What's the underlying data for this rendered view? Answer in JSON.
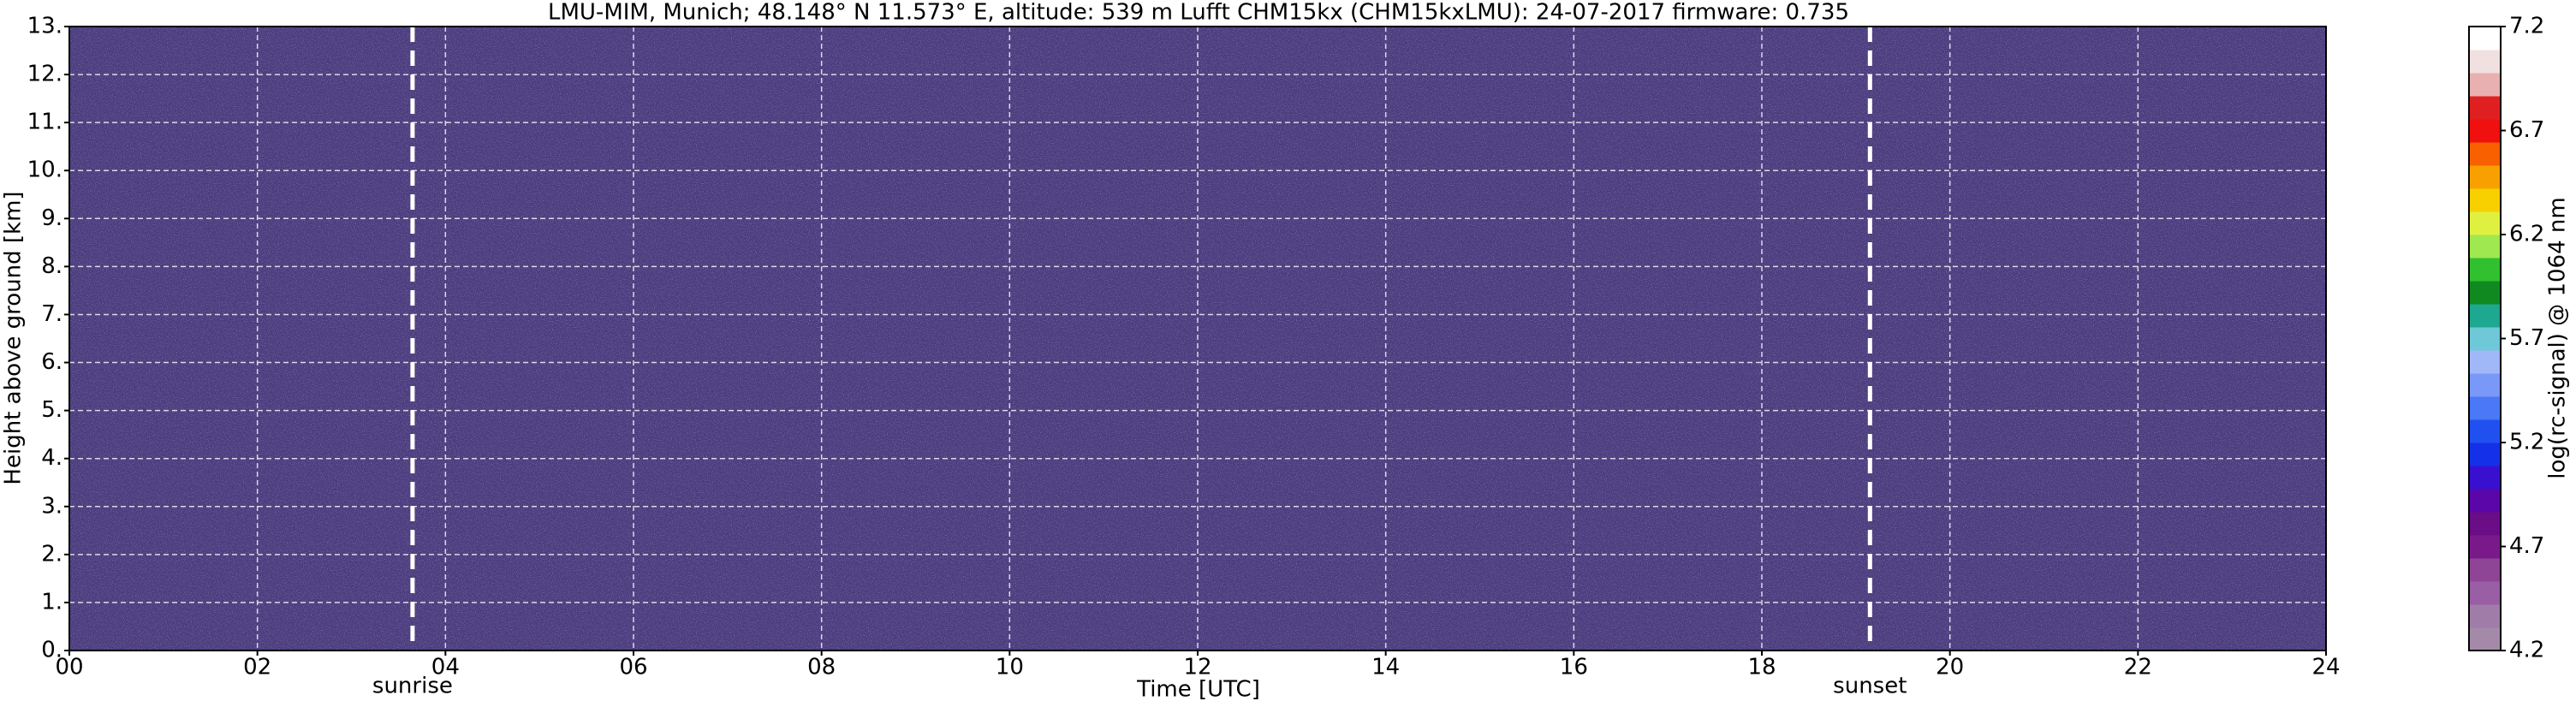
{
  "chart_data": {
    "type": "heatmap",
    "title": "LMU-MIM, Munich; 48.148° N 11.573° E, altitude: 539 m    Lufft CHM15kx (CHM15kxLMU): 24-07-2017    firmware: 0.735",
    "x_label": "Time [UTC]",
    "y_label": "Height above ground [km]",
    "xlim": [
      0,
      24
    ],
    "xticks": [
      {
        "value": 0,
        "label": "00"
      },
      {
        "value": 2,
        "label": "02"
      },
      {
        "value": 4,
        "label": "04"
      },
      {
        "value": 6,
        "label": "06"
      },
      {
        "value": 8,
        "label": "08"
      },
      {
        "value": 10,
        "label": "10"
      },
      {
        "value": 12,
        "label": "12"
      },
      {
        "value": 14,
        "label": "14"
      },
      {
        "value": 16,
        "label": "16"
      },
      {
        "value": 18,
        "label": "18"
      },
      {
        "value": 20,
        "label": "20"
      },
      {
        "value": 22,
        "label": "22"
      },
      24
    ],
    "ylim": [
      0,
      13
    ],
    "yticks": [
      {
        "value": 0,
        "label": "0."
      },
      {
        "value": 1,
        "label": "1."
      },
      {
        "value": 2,
        "label": "2."
      },
      {
        "value": 3,
        "label": "3."
      },
      {
        "value": 4,
        "label": "4."
      },
      {
        "value": 5,
        "label": "5."
      },
      {
        "value": 6,
        "label": "6."
      },
      {
        "value": 7,
        "label": "7."
      },
      {
        "value": 8,
        "label": "8."
      },
      {
        "value": 9,
        "label": "9."
      },
      {
        "value": 10,
        "label": "10."
      },
      {
        "value": 11,
        "label": "11."
      },
      {
        "value": 12,
        "label": "12."
      },
      {
        "value": 13,
        "label": "13."
      }
    ],
    "grid": true,
    "annotations": [
      {
        "label": "sunrise",
        "x": 3.65
      },
      {
        "label": "sunset",
        "x": 19.15
      }
    ],
    "colorbar": {
      "label": "log(rc-signal) @ 1064 nm",
      "lim": [
        4.2,
        7.2
      ],
      "ticks": [
        4.2,
        4.7,
        5.2,
        5.7,
        6.2,
        6.7,
        7.2
      ],
      "colors": [
        "#a48aa8",
        "#a07ca8",
        "#9a5ea4",
        "#8e4596",
        "#7a1a8a",
        "#6a0d86",
        "#5a06a8",
        "#3a10d0",
        "#1430e8",
        "#2050f0",
        "#4a78f6",
        "#7a98f8",
        "#a0b8f8",
        "#6ec8d8",
        "#1ea890",
        "#108a20",
        "#30c030",
        "#a0e850",
        "#e0f040",
        "#f8d000",
        "#f8a000",
        "#f86000",
        "#f01010",
        "#e02020",
        "#e8b0b0",
        "#f0e0e0",
        "#ffffff"
      ]
    }
  }
}
